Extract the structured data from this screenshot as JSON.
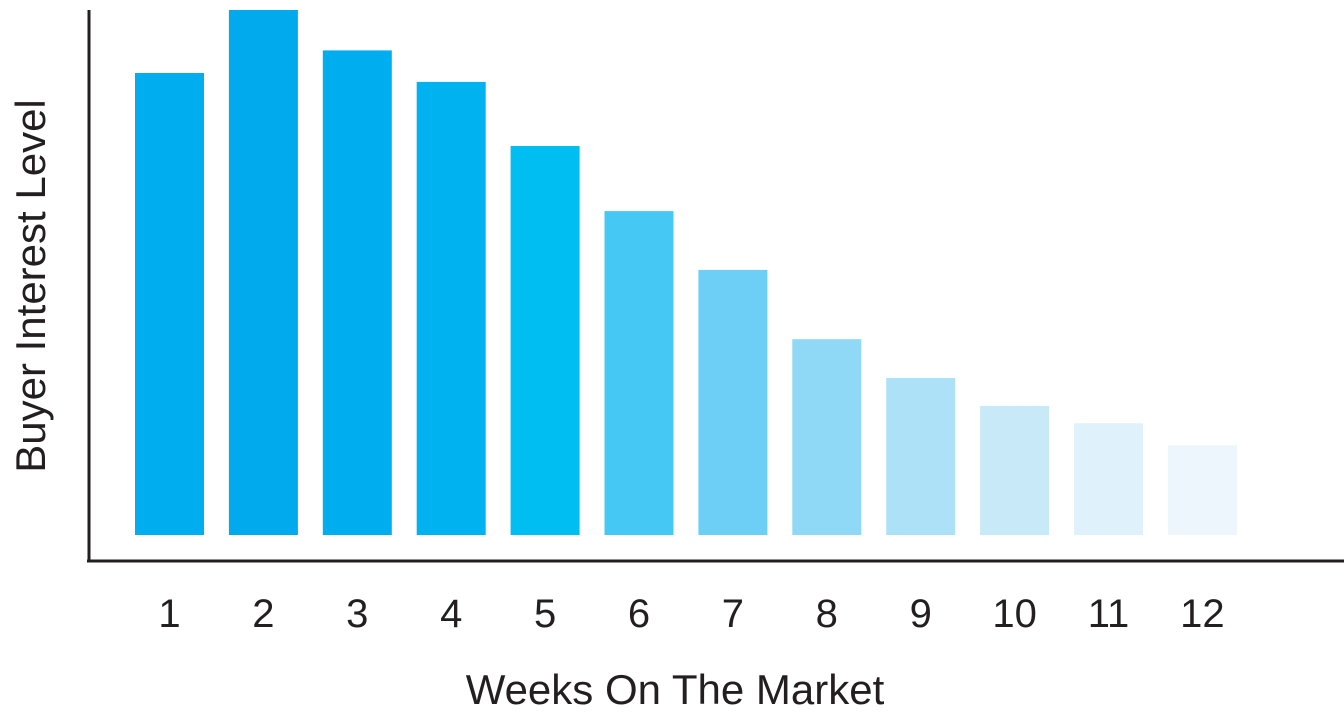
{
  "chart_data": {
    "type": "bar",
    "title": "",
    "xlabel": "Weeks On The Market",
    "ylabel": "Buyer Interest Level",
    "categories": [
      "1",
      "2",
      "3",
      "4",
      "5",
      "6",
      "7",
      "8",
      "9",
      "10",
      "11",
      "12"
    ],
    "values": [
      88,
      100,
      92.3,
      86.3,
      74.1,
      61.7,
      50.5,
      37.3,
      29.9,
      24.6,
      21.3,
      17.1
    ],
    "ylim": [
      0,
      100
    ],
    "grid": false,
    "legend": "none",
    "bar_colors": [
      "#00aeef",
      "#00aaec",
      "#00aeef",
      "#00b3f0",
      "#00bdf2",
      "#45c9f4",
      "#6dcff5",
      "#8fd8f6",
      "#ade1f8",
      "#c8e9f8",
      "#dff1fb",
      "#eef6fd"
    ],
    "axis_color": "#231f20",
    "text_color": "#231f20"
  }
}
